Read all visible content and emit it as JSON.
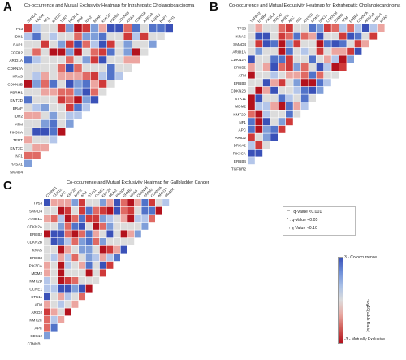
{
  "panels": [
    {
      "id": "A",
      "title": "Co-occurrence and Mutual Exclusivity Heatmap for Intrahepatic Cholangiocarcinoma",
      "genes": [
        "TP53",
        "IDH1",
        "BAP1",
        "FGFR2",
        "ARID1A",
        "CDKN2A",
        "KRAS",
        "CDKN2B",
        "PBRM1",
        "KMT2D",
        "BRAF",
        "IDH2",
        "ATM",
        "PIK3CA",
        "TERT",
        "KMT2C",
        "NF1",
        "RASA1",
        "SMAD4"
      ],
      "cols": [
        "SMAD4",
        "RASA1",
        "NF1",
        "KMT2C",
        "TERT",
        "PIK3CA",
        "ATM",
        "IDH2",
        "BRAF",
        "KMT2D",
        "PBRM1",
        "CDKN2B",
        "KRAS",
        "CDKN2A",
        "ARID1A",
        "FGFR2",
        "BAP1",
        "IDH1"
      ]
    },
    {
      "id": "B",
      "title": "Co-occurrence and Mutual Exclusivity Heatmap for Extrahepatic Cholangiocarcinoma",
      "genes": [
        "TP53",
        "KRAS",
        "SMAD4",
        "ARID1A",
        "CDKN2A",
        "ERBB2",
        "ATM",
        "ERBB3",
        "CDKN2B",
        "STK11",
        "MDM2",
        "KMT2D",
        "NF1",
        "APC",
        "ARID2",
        "BRCA2",
        "PIK3CA",
        "ERBB4",
        "TGFBR2"
      ],
      "cols": [
        "TGFBR2",
        "ERBB4",
        "PIK3CA",
        "BRCA2",
        "ARID2",
        "APC",
        "NF1",
        "KMT2D",
        "MDM2",
        "STK11",
        "CDKN2B",
        "ERBB3",
        "ATM",
        "ERBB2",
        "CDKN2A",
        "ARID1A",
        "SMAD4",
        "KRAS"
      ]
    },
    {
      "id": "C",
      "title": "Co-occurrence and Mutual Exclusivity Heatmap for Gallbladder Cancer",
      "genes": [
        "TP53",
        "SMAD4",
        "ARID1A",
        "CDKN2A",
        "ERBB2",
        "CDKN2B",
        "KRAS",
        "ERBB3",
        "PIK3CA",
        "MDM2",
        "KMT2D",
        "CCNE1",
        "STK11",
        "ATM",
        "ARID2",
        "KMT2C",
        "APC",
        "CDK12",
        "CTNNB1"
      ],
      "cols": [
        "CTNNB1",
        "CDK12",
        "APC",
        "KMT2C",
        "ARID2",
        "ATM",
        "STK11",
        "CCNE1",
        "KMT2D",
        "MDM2",
        "PIK3CA",
        "ERBB3",
        "KRAS",
        "CDKN2B",
        "ERBB2",
        "CDKN2A",
        "ARID1A",
        "SMAD4"
      ]
    }
  ],
  "legend": {
    "sig1": "** : q-Value <0.001",
    "sig2": "* : q-Value <0.05",
    "sig3": ". : q-Value <0.10"
  },
  "colorbar": {
    "top_label": "3 - Co-occurrence",
    "bottom_label": "-3 - Mutually Exclusive",
    "axis_label": "-log10(odds Ratio)",
    "range": [
      -3,
      3
    ],
    "colors": {
      "co": "#3a51b8",
      "neutral": "#dcdcdc",
      "me": "#b3121d"
    }
  }
}
